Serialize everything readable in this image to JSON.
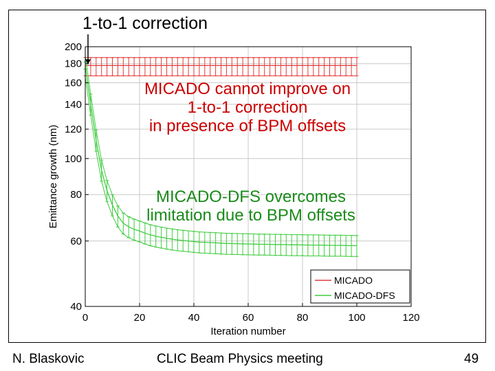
{
  "slide": {
    "callout": "1-to-1 correction",
    "annotation_red": [
      "MICADO cannot improve on",
      "1-to-1 correction",
      "in presence of BPM offsets"
    ],
    "annotation_green": [
      "MICADO-DFS overcomes",
      "limitation due to BPM offsets"
    ],
    "footer_left": "N. Blaskovic",
    "footer_center": "CLIC Beam Physics meeting",
    "footer_right": "49"
  },
  "colors": {
    "micado": "#e23a3a",
    "micado_dfs": "#3ecc3e",
    "annot_red": "#cc0000",
    "annot_green": "#1a8a1a",
    "grid": "#c8c8c8"
  },
  "chart_data": {
    "type": "line",
    "title": "",
    "xlabel": "Iteration number",
    "ylabel": "Emittance growth (nm)",
    "yscale": "log",
    "xlim": [
      0,
      120
    ],
    "ylim": [
      40,
      200
    ],
    "xticks": [
      0,
      20,
      40,
      60,
      80,
      100,
      120
    ],
    "yticks": [
      40,
      60,
      80,
      100,
      120,
      140,
      160,
      180,
      200
    ],
    "grid": true,
    "legend_position": "bottom-right",
    "series": [
      {
        "name": "MICADO",
        "x": [
          0,
          2,
          4,
          6,
          8,
          10,
          12,
          14,
          16,
          18,
          20,
          22,
          24,
          26,
          28,
          30,
          32,
          34,
          36,
          38,
          40,
          42,
          44,
          46,
          48,
          50,
          52,
          54,
          56,
          58,
          60,
          62,
          64,
          66,
          68,
          70,
          72,
          74,
          76,
          78,
          80,
          82,
          84,
          86,
          88,
          90,
          92,
          94,
          96,
          98,
          100
        ],
        "y": [
          178,
          178,
          178,
          178,
          178,
          178,
          178,
          178,
          178,
          178,
          178,
          178,
          178,
          178,
          178,
          178,
          178,
          178,
          178,
          178,
          178,
          178,
          178,
          178,
          178,
          178,
          178,
          178,
          178,
          178,
          178,
          178,
          178,
          178,
          178,
          178,
          178,
          178,
          178,
          178,
          178,
          178,
          178,
          178,
          178,
          178,
          178,
          178,
          178,
          178,
          178
        ],
        "err_low": 167,
        "err_high": 187
      },
      {
        "name": "MICADO-DFS",
        "x": [
          0,
          2,
          4,
          6,
          8,
          10,
          12,
          14,
          16,
          18,
          20,
          22,
          24,
          26,
          28,
          30,
          32,
          34,
          36,
          38,
          40,
          42,
          44,
          46,
          48,
          50,
          52,
          54,
          56,
          58,
          60,
          62,
          64,
          66,
          68,
          70,
          72,
          74,
          76,
          78,
          80,
          82,
          84,
          86,
          88,
          90,
          92,
          94,
          96,
          98,
          100
        ],
        "y": [
          178,
          140,
          112,
          93,
          82,
          75,
          70,
          67,
          65.5,
          64.5,
          63.8,
          63,
          62.3,
          61.8,
          61.4,
          61,
          60.7,
          60.4,
          60.2,
          60,
          59.8,
          59.6,
          59.5,
          59.4,
          59.3,
          59.2,
          59.1,
          59.05,
          59,
          58.95,
          58.9,
          58.85,
          58.8,
          58.8,
          58.75,
          58.7,
          58.7,
          58.65,
          58.6,
          58.6,
          58.55,
          58.5,
          58.5,
          58.5,
          58.45,
          58.4,
          58.4,
          58.4,
          58.35,
          58.3,
          58.3
        ],
        "err_frac": 0.065
      }
    ]
  }
}
